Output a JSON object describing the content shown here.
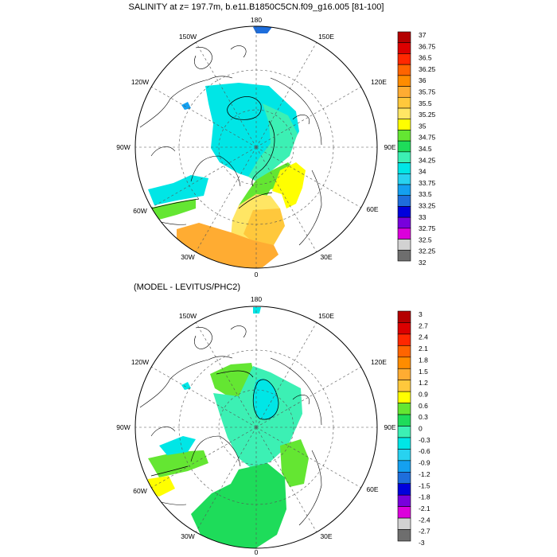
{
  "chart_data": [
    {
      "type": "polar-map",
      "title": "SALINITY at z= 197.7m, b.e11.B1850C5CN.f09_g16.005 [81-100]",
      "projection": "north polar stereographic",
      "lon_labels": [
        "180",
        "150E",
        "120E",
        "90E",
        "60E",
        "30E",
        "0",
        "30W",
        "60W",
        "90W",
        "120W",
        "150W"
      ],
      "colorbar": {
        "labels": [
          "37",
          "36.75",
          "36.5",
          "36.25",
          "36",
          "35.75",
          "35.5",
          "35.25",
          "35",
          "34.75",
          "34.5",
          "34.25",
          "34",
          "33.75",
          "33.5",
          "33.25",
          "33",
          "32.75",
          "32.5",
          "32.25",
          "32"
        ],
        "colors": [
          "#b40000",
          "#dc0000",
          "#ff2800",
          "#ff6400",
          "#ff8c00",
          "#ffac32",
          "#ffc83c",
          "#ffe664",
          "#ffff00",
          "#64e632",
          "#1edc5a",
          "#3cf0b4",
          "#00e6e6",
          "#28d2f0",
          "#14a0f0",
          "#1e6edc",
          "#0000dc",
          "#7800dc",
          "#dc00dc",
          "#d2d2d2",
          "#6e6e6e"
        ]
      }
    },
    {
      "type": "polar-map",
      "title": "(MODEL - LEVITUS/PHC2)",
      "projection": "north polar stereographic",
      "lon_labels": [
        "180",
        "150E",
        "120E",
        "90E",
        "60E",
        "30E",
        "0",
        "30W",
        "60W",
        "90W",
        "120W",
        "150W"
      ],
      "colorbar": {
        "labels": [
          "3",
          "2.7",
          "2.4",
          "2.1",
          "1.8",
          "1.5",
          "1.2",
          "0.9",
          "0.6",
          "0.3",
          "0",
          "-0.3",
          "-0.6",
          "-0.9",
          "-1.2",
          "-1.5",
          "-1.8",
          "-2.1",
          "-2.4",
          "-2.7",
          "-3"
        ],
        "colors": [
          "#b40000",
          "#dc0000",
          "#ff2800",
          "#ff6400",
          "#ff8c00",
          "#ffac32",
          "#ffc83c",
          "#ffff00",
          "#64e632",
          "#1edc5a",
          "#3cf0b4",
          "#00e6e6",
          "#28d2f0",
          "#14a0f0",
          "#1e6edc",
          "#0000dc",
          "#7800dc",
          "#dc00dc",
          "#d2d2d2",
          "#6e6e6e"
        ]
      }
    }
  ]
}
